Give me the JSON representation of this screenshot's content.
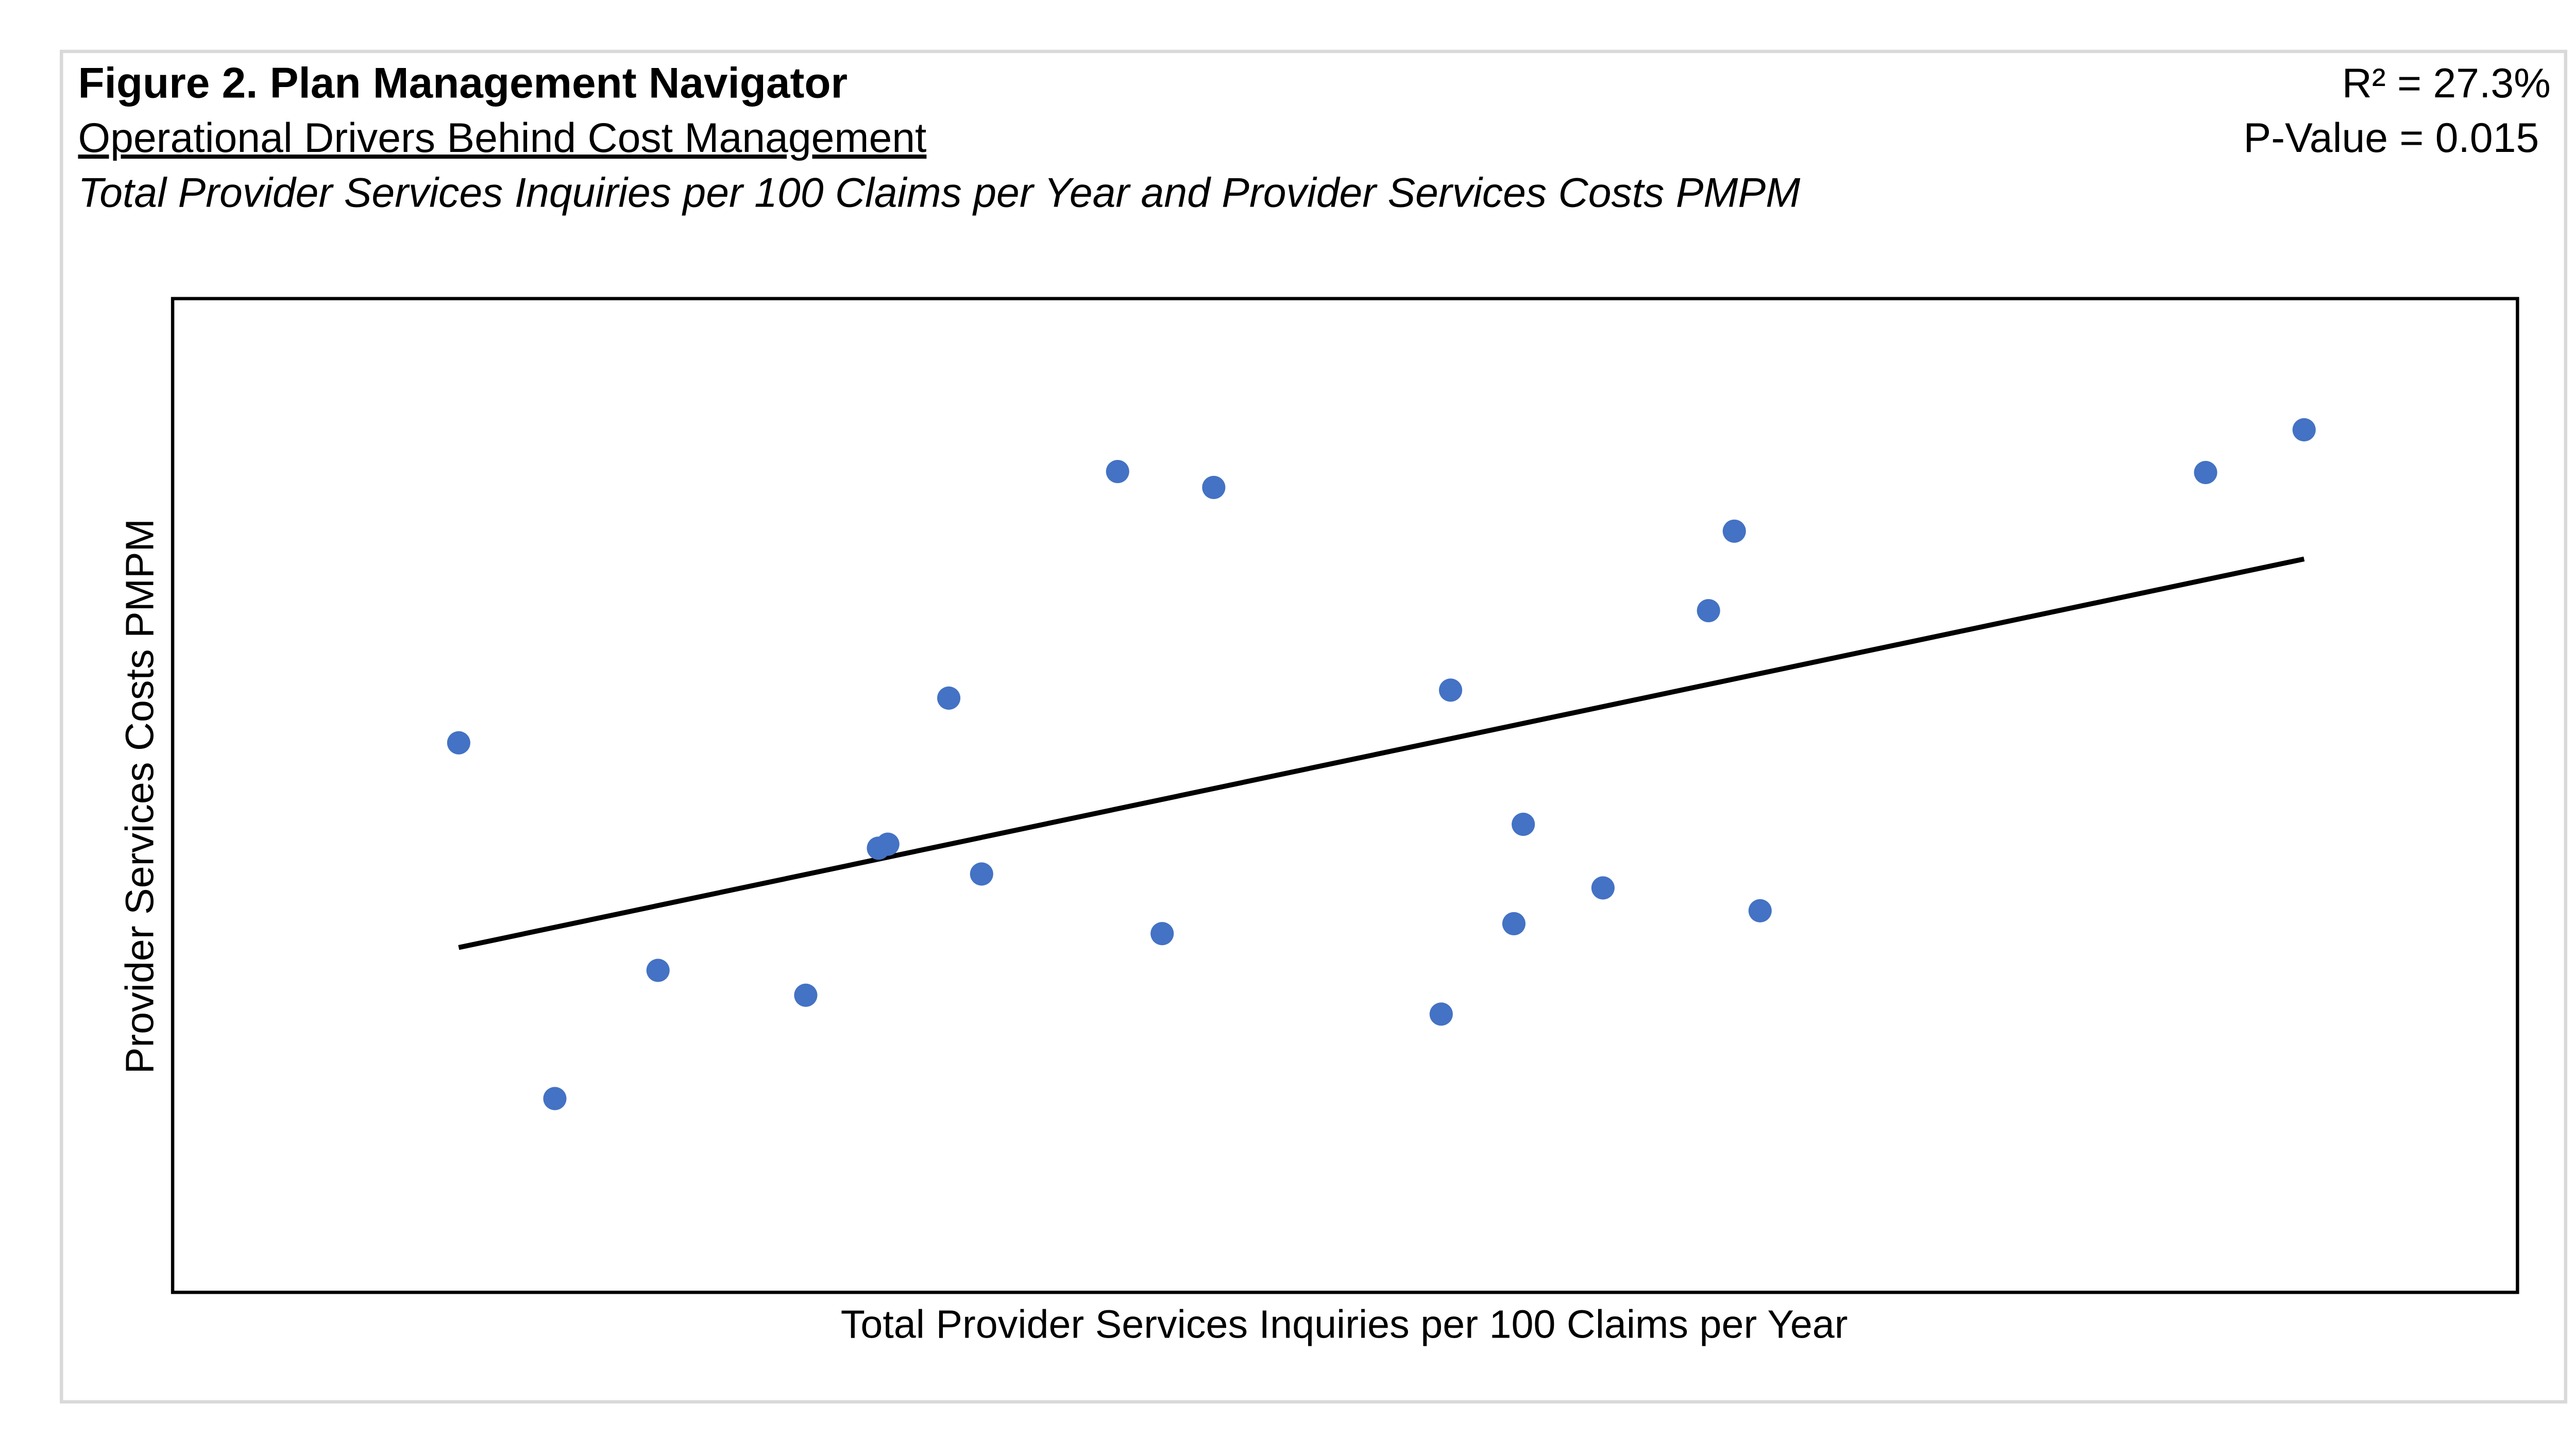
{
  "chart_data": {
    "type": "scatter",
    "title": "Figure 2. Plan Management Navigator",
    "subtitle": "Operational Drivers Behind Cost Management",
    "description": "Total Provider Services Inquiries per 100 Claims per Year and Provider Services Costs PMPM",
    "annotations": [
      "R² = 27.3%",
      "P-Value = 0.015"
    ],
    "x_label": "Total Provider Services Inquiries per 100 Claims per Year",
    "y_label": "Provider Services Costs PMPM",
    "xlim": [
      0,
      100
    ],
    "ylim": [
      0,
      100
    ],
    "color": "#4472c4",
    "x": [
      12.2,
      16.3,
      20.7,
      27.0,
      30.1,
      30.5,
      33.1,
      34.5,
      40.3,
      42.2,
      44.4,
      54.1,
      54.5,
      57.2,
      57.6,
      61.0,
      65.5,
      66.6,
      67.7,
      86.7,
      90.9
    ],
    "y": [
      55.3,
      19.5,
      32.4,
      29.9,
      44.7,
      45.1,
      59.8,
      42.1,
      82.6,
      36.1,
      81.0,
      28.0,
      60.6,
      37.1,
      47.1,
      40.7,
      68.6,
      76.6,
      38.4,
      82.5,
      86.8
    ],
    "trendline": {
      "x": [
        12.2,
        90.9
      ],
      "y": [
        34.7,
        73.8
      ],
      "color": "#000000"
    }
  }
}
